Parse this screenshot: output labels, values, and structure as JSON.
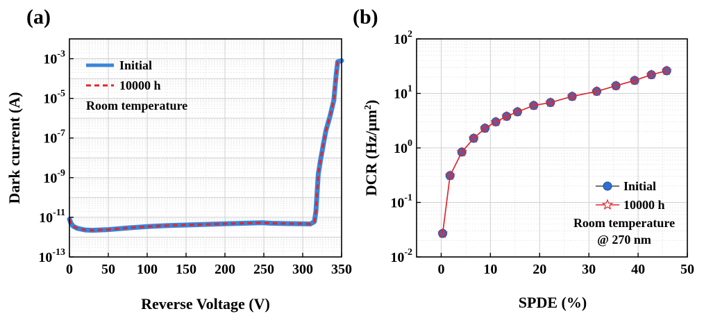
{
  "colors": {
    "initial": "#3a85d8",
    "aged": "#e3262d",
    "marker_blue": "#2f6fd0",
    "grid_major": "#cfcfcf",
    "grid_minor": "#e6e6e6"
  },
  "chart_data": [
    {
      "panel_label": "(a)",
      "type": "line",
      "y_scale": "log",
      "xlabel": "Reverse Voltage (V)",
      "ylabel": "Dark current (A)",
      "xlim": [
        0,
        350
      ],
      "ylim": [
        1e-13,
        0.01
      ],
      "x_ticks": [
        0,
        50,
        100,
        150,
        200,
        250,
        300,
        350
      ],
      "x_tick_labels": [
        "0",
        "50",
        "100",
        "150",
        "200",
        "250",
        "300",
        "350"
      ],
      "y_ticks": [
        1e-13,
        1e-11,
        1e-09,
        1e-07,
        1e-05,
        0.001
      ],
      "y_tick_labels": [
        {
          "base": "10",
          "exp": "-13"
        },
        {
          "base": "10",
          "exp": "-11"
        },
        {
          "base": "10",
          "exp": "-9"
        },
        {
          "base": "10",
          "exp": "-7"
        },
        {
          "base": "10",
          "exp": "-5"
        },
        {
          "base": "10",
          "exp": "-3"
        }
      ],
      "grid": true,
      "legend": {
        "position": "top-left",
        "entries": [
          "Initial",
          "10000 h"
        ]
      },
      "annotation": "Room temperature",
      "series": [
        {
          "name": "Initial",
          "style": "solid",
          "x": [
            0,
            2,
            5,
            10,
            20,
            30,
            50,
            75,
            100,
            125,
            150,
            175,
            200,
            225,
            248,
            260,
            280,
            300,
            310,
            315,
            317,
            320,
            323,
            327,
            330,
            335,
            340,
            343,
            345,
            350
          ],
          "y": [
            8e-12,
            5e-12,
            3.5e-12,
            2.8e-12,
            2.3e-12,
            2.2e-12,
            2.4e-12,
            2.9e-12,
            3.4e-12,
            3.8e-12,
            4.1e-12,
            4.4e-12,
            4.7e-12,
            5e-12,
            5.3e-12,
            5e-12,
            4.8e-12,
            4.7e-12,
            4.6e-12,
            6e-12,
            2e-11,
            1.5e-09,
            8e-09,
            6e-08,
            2.5e-07,
            1.2e-06,
            8e-06,
            0.00015,
            0.0007,
            0.0008
          ]
        },
        {
          "name": "10000 h",
          "style": "dashed",
          "x": [
            0,
            2,
            5,
            10,
            20,
            30,
            50,
            75,
            100,
            125,
            150,
            175,
            200,
            225,
            248,
            260,
            280,
            300,
            310,
            315,
            317,
            320,
            323,
            327,
            330,
            335,
            340,
            343,
            345,
            350
          ],
          "y": [
            8e-12,
            5e-12,
            3.5e-12,
            2.8e-12,
            2.3e-12,
            2.2e-12,
            2.4e-12,
            2.9e-12,
            3.4e-12,
            3.8e-12,
            4.1e-12,
            4.4e-12,
            4.7e-12,
            5e-12,
            5.3e-12,
            5e-12,
            4.8e-12,
            4.7e-12,
            4.6e-12,
            6e-12,
            2e-11,
            1.5e-09,
            8e-09,
            6e-08,
            2.5e-07,
            1.2e-06,
            8e-06,
            0.00015,
            0.0007,
            0.0008
          ]
        }
      ]
    },
    {
      "panel_label": "(b)",
      "type": "line",
      "y_scale": "log",
      "xlabel": "SPDE (%)",
      "ylabel_main": "DCR (Hz/μm",
      "ylabel_sup": "2",
      "ylabel_end": ")",
      "xlim": [
        -5,
        50
      ],
      "ylim": [
        0.01,
        100
      ],
      "x_ticks": [
        0,
        10,
        20,
        30,
        40,
        50
      ],
      "x_tick_labels": [
        "0",
        "10",
        "20",
        "30",
        "40",
        "50"
      ],
      "y_ticks": [
        0.01,
        0.1,
        1,
        10,
        100
      ],
      "y_tick_labels": [
        {
          "base": "10",
          "exp": "-2"
        },
        {
          "base": "10",
          "exp": "-1"
        },
        {
          "base": "10",
          "exp": "0"
        },
        {
          "base": "10",
          "exp": "1"
        },
        {
          "base": "10",
          "exp": "2"
        }
      ],
      "grid": true,
      "legend": {
        "position": "bottom-right",
        "entries": [
          "Initial",
          "10000 h"
        ]
      },
      "annotation_lines": [
        "Room temperature",
        "@ 270 nm"
      ],
      "series": [
        {
          "name": "Initial",
          "marker": "circle",
          "x": [
            0.3,
            1.8,
            4.2,
            6.6,
            8.9,
            11.1,
            13.3,
            15.5,
            18.8,
            22.2,
            26.6,
            31.6,
            35.5,
            39.3,
            42.7,
            45.8
          ],
          "y": [
            0.027,
            0.31,
            0.84,
            1.5,
            2.3,
            3.0,
            3.8,
            4.6,
            6.0,
            6.8,
            8.8,
            10.9,
            13.8,
            17.3,
            22.0,
            26.0
          ]
        },
        {
          "name": "10000 h",
          "marker": "star",
          "x": [
            0.3,
            1.8,
            4.2,
            6.6,
            8.9,
            11.1,
            13.3,
            15.5,
            18.8,
            22.2,
            26.6,
            31.6,
            35.5,
            39.3,
            42.7,
            45.8
          ],
          "y": [
            0.027,
            0.31,
            0.84,
            1.5,
            2.3,
            3.0,
            3.8,
            4.6,
            6.0,
            6.8,
            8.8,
            10.9,
            13.8,
            17.3,
            22.0,
            26.0
          ]
        }
      ]
    }
  ]
}
